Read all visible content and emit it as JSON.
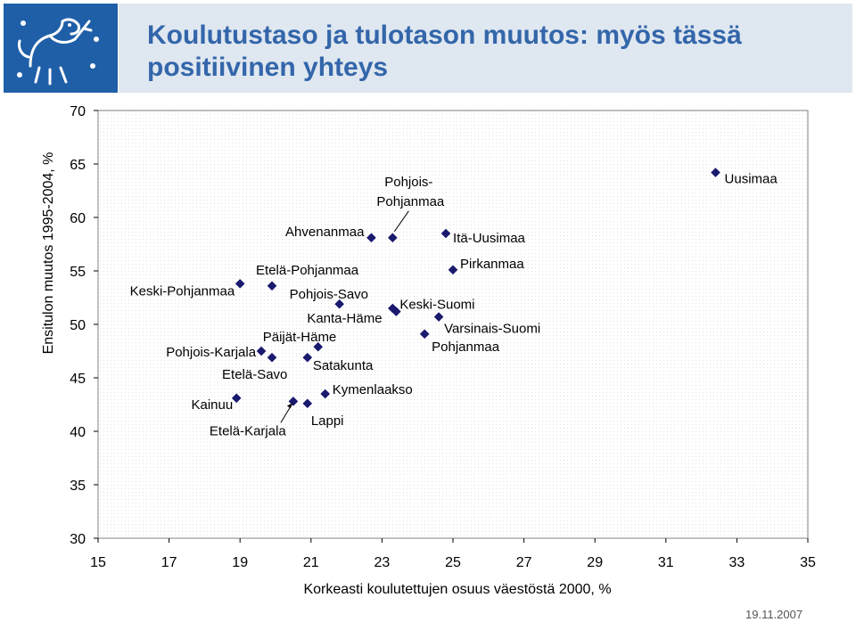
{
  "slide": {
    "title_line1": "Koulutustaso ja tulotason muutos: myös tässä",
    "title_line2": "positiivinen yhteys",
    "date": "19.11.2007",
    "colors": {
      "header_blue": "#1f5fa8",
      "title_bg": "#dfe7f0",
      "title_text": "#3366aa",
      "marker": "#1a1a6e"
    },
    "logo_icon": "lion-coat-of-arms-icon"
  },
  "chart_data": {
    "type": "scatter",
    "title": "",
    "xlabel": "Korkeasti koulutettujen osuus väestöstä 2000, %",
    "ylabel": "Ensitulon muutos 1995-2004, %",
    "xlim": [
      15,
      35
    ],
    "ylim": [
      30,
      70
    ],
    "xticks": [
      "15",
      "17",
      "19",
      "21",
      "23",
      "25",
      "27",
      "29",
      "31",
      "33",
      "35"
    ],
    "yticks": [
      "30",
      "35",
      "40",
      "45",
      "50",
      "55",
      "60",
      "65",
      "70"
    ],
    "grid": false,
    "points": [
      {
        "label": "Uusimaa",
        "x": 32.4,
        "y": 64.2
      },
      {
        "label": "Itä-Uusimaa",
        "x": 24.8,
        "y": 58.5
      },
      {
        "label": "Pohjois-Pohjanmaa",
        "x": 23.3,
        "y": 58.1
      },
      {
        "label": "Ahvenanmaa",
        "x": 22.7,
        "y": 58.1
      },
      {
        "label": "Pirkanmaa",
        "x": 25.0,
        "y": 55.1
      },
      {
        "label": "Etelä-Pohjanmaa",
        "x": 19.9,
        "y": 53.6
      },
      {
        "label": "Keski-Pohjanmaa",
        "x": 19.0,
        "y": 53.8
      },
      {
        "label": "Pohjois-Savo",
        "x": 21.8,
        "y": 51.9
      },
      {
        "label": "Keski-Suomi",
        "x": 23.4,
        "y": 51.2
      },
      {
        "label": "Kanta-Häme",
        "x": 23.3,
        "y": 51.5
      },
      {
        "label": "Varsinais-Suomi",
        "x": 24.6,
        "y": 50.7
      },
      {
        "label": "Pohjanmaa",
        "x": 24.2,
        "y": 49.1
      },
      {
        "label": "Päijät-Häme",
        "x": 21.2,
        "y": 47.9
      },
      {
        "label": "Pohjois-Karjala",
        "x": 19.6,
        "y": 47.5
      },
      {
        "label": "Etelä-Savo",
        "x": 19.9,
        "y": 46.9
      },
      {
        "label": "Satakunta",
        "x": 20.9,
        "y": 46.9
      },
      {
        "label": "Kymenlaakso",
        "x": 21.4,
        "y": 43.5
      },
      {
        "label": "Kainuu",
        "x": 18.9,
        "y": 43.1
      },
      {
        "label": "Etelä-Karjala",
        "x": 20.5,
        "y": 42.8
      },
      {
        "label": "Lappi",
        "x": 20.9,
        "y": 42.6
      }
    ]
  }
}
